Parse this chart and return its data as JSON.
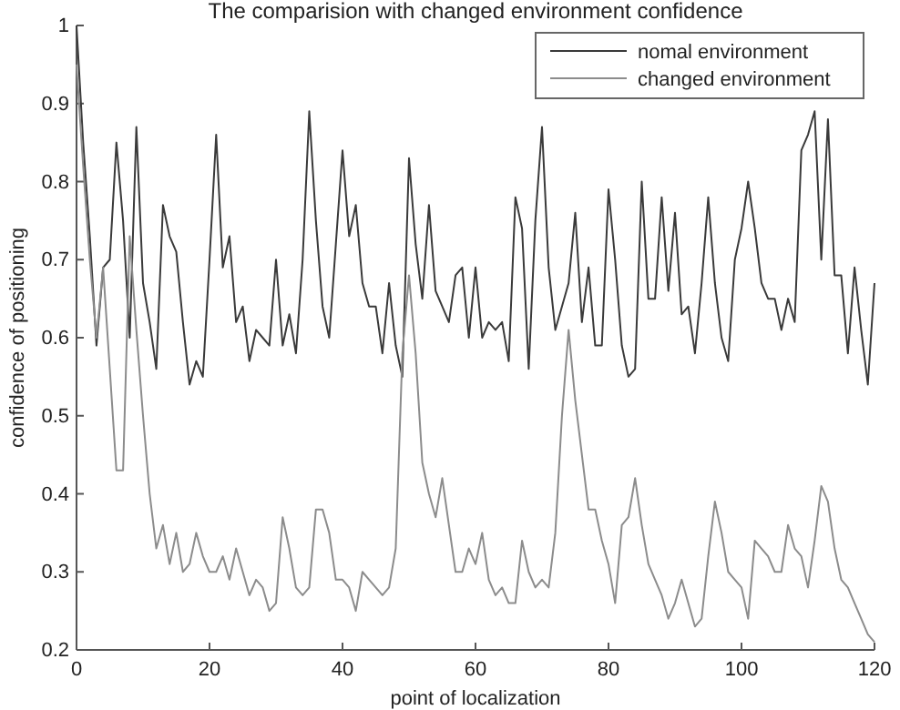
{
  "chart_data": {
    "type": "line",
    "title": "The comparision with changed environment confidence",
    "xlabel": "point of localization",
    "ylabel": "confidence of positioning",
    "x": [
      0,
      1,
      2,
      3,
      4,
      5,
      6,
      7,
      8,
      9,
      10,
      11,
      12,
      13,
      14,
      15,
      16,
      17,
      18,
      19,
      20,
      21,
      22,
      23,
      24,
      25,
      26,
      27,
      28,
      29,
      30,
      31,
      32,
      33,
      34,
      35,
      36,
      37,
      38,
      39,
      40,
      41,
      42,
      43,
      44,
      45,
      46,
      47,
      48,
      49,
      50,
      51,
      52,
      53,
      54,
      55,
      56,
      57,
      58,
      59,
      60,
      61,
      62,
      63,
      64,
      65,
      66,
      67,
      68,
      69,
      70,
      71,
      72,
      73,
      74,
      75,
      76,
      77,
      78,
      79,
      80,
      81,
      82,
      83,
      84,
      85,
      86,
      87,
      88,
      89,
      90,
      91,
      92,
      93,
      94,
      95,
      96,
      97,
      98,
      99,
      100,
      101,
      102,
      103,
      104,
      105,
      106,
      107,
      108,
      109,
      110,
      111,
      112,
      113,
      114,
      115,
      116,
      117,
      118,
      119,
      120
    ],
    "series": [
      {
        "name": "nomal environment",
        "color": "#3a3a3a",
        "values": [
          1.0,
          0.85,
          0.73,
          0.59,
          0.69,
          0.7,
          0.85,
          0.75,
          0.6,
          0.87,
          0.67,
          0.62,
          0.56,
          0.77,
          0.73,
          0.71,
          0.62,
          0.54,
          0.57,
          0.55,
          0.7,
          0.86,
          0.69,
          0.73,
          0.62,
          0.64,
          0.57,
          0.61,
          0.6,
          0.59,
          0.7,
          0.59,
          0.63,
          0.58,
          0.7,
          0.89,
          0.75,
          0.64,
          0.6,
          0.72,
          0.84,
          0.73,
          0.77,
          0.67,
          0.64,
          0.64,
          0.58,
          0.67,
          0.59,
          0.55,
          0.83,
          0.72,
          0.65,
          0.77,
          0.66,
          0.64,
          0.62,
          0.68,
          0.69,
          0.6,
          0.69,
          0.6,
          0.62,
          0.61,
          0.62,
          0.57,
          0.78,
          0.74,
          0.56,
          0.75,
          0.87,
          0.69,
          0.61,
          0.64,
          0.67,
          0.76,
          0.62,
          0.69,
          0.59,
          0.59,
          0.79,
          0.7,
          0.59,
          0.55,
          0.56,
          0.8,
          0.65,
          0.65,
          0.78,
          0.66,
          0.76,
          0.63,
          0.64,
          0.58,
          0.67,
          0.78,
          0.67,
          0.6,
          0.57,
          0.7,
          0.74,
          0.8,
          0.74,
          0.67,
          0.65,
          0.65,
          0.61,
          0.65,
          0.62,
          0.84,
          0.86,
          0.89,
          0.7,
          0.88,
          0.68,
          0.68,
          0.58,
          0.69,
          0.61,
          0.54,
          0.67
        ]
      },
      {
        "name": "changed environment",
        "color": "#8c8c8c",
        "values": [
          0.95,
          0.82,
          0.7,
          0.6,
          0.69,
          0.56,
          0.43,
          0.43,
          0.73,
          0.61,
          0.5,
          0.4,
          0.33,
          0.36,
          0.31,
          0.35,
          0.3,
          0.31,
          0.35,
          0.32,
          0.3,
          0.3,
          0.32,
          0.29,
          0.33,
          0.3,
          0.27,
          0.29,
          0.28,
          0.25,
          0.26,
          0.37,
          0.33,
          0.28,
          0.27,
          0.28,
          0.38,
          0.38,
          0.35,
          0.29,
          0.29,
          0.28,
          0.25,
          0.3,
          0.29,
          0.28,
          0.27,
          0.28,
          0.33,
          0.58,
          0.68,
          0.58,
          0.44,
          0.4,
          0.37,
          0.42,
          0.36,
          0.3,
          0.3,
          0.33,
          0.31,
          0.35,
          0.29,
          0.27,
          0.28,
          0.26,
          0.26,
          0.34,
          0.3,
          0.28,
          0.29,
          0.28,
          0.35,
          0.5,
          0.61,
          0.52,
          0.45,
          0.38,
          0.38,
          0.34,
          0.31,
          0.26,
          0.36,
          0.37,
          0.42,
          0.36,
          0.31,
          0.29,
          0.27,
          0.24,
          0.26,
          0.29,
          0.26,
          0.23,
          0.24,
          0.32,
          0.39,
          0.35,
          0.3,
          0.29,
          0.28,
          0.24,
          0.34,
          0.33,
          0.32,
          0.3,
          0.3,
          0.36,
          0.33,
          0.32,
          0.28,
          0.34,
          0.41,
          0.39,
          0.33,
          0.29,
          0.28,
          0.26,
          0.24,
          0.22,
          0.21
        ]
      }
    ],
    "xlim": [
      0,
      120
    ],
    "xticks": [
      0,
      20,
      40,
      60,
      80,
      100,
      120
    ],
    "ylim": [
      0.2,
      1
    ],
    "yticks": [
      0.2,
      0.3,
      0.4,
      0.5,
      0.6,
      0.7,
      0.8,
      0.9,
      1
    ],
    "legend": "top right",
    "grid": false
  }
}
